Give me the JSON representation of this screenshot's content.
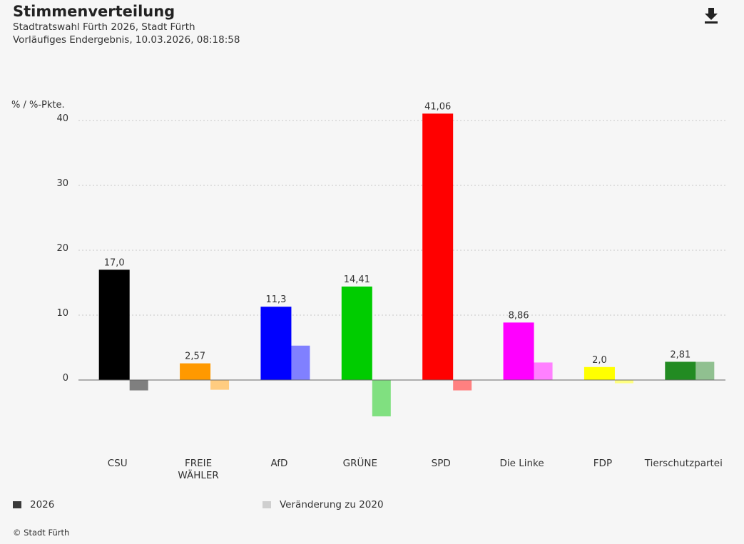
{
  "header": {
    "title": "Stimmenverteilung",
    "subtitle": "Stadtratswahl Fürth 2026, Stadt Fürth",
    "status": "Vorläufiges Endergebnis, 10.03.2026, 08:18:58",
    "download_icon": "download-icon"
  },
  "legend": {
    "current_label": "2026",
    "change_label": "Veränderung zu 2020",
    "current_color": "#3a3a3a",
    "change_color": "#cfcfcf"
  },
  "footer": {
    "credit": "© Stadt Fürth"
  },
  "chart_data": {
    "type": "bar",
    "ylabel": "% / %-Pkte.",
    "ylim": [
      -10,
      42
    ],
    "yticks": [
      0,
      10,
      20,
      30,
      40
    ],
    "grid": true,
    "categories": [
      {
        "name": "CSU",
        "lines": [
          "CSU"
        ]
      },
      {
        "name": "FREIE WÄHLER",
        "lines": [
          "FREIE",
          "WÄHLER"
        ]
      },
      {
        "name": "AfD",
        "lines": [
          "AfD"
        ]
      },
      {
        "name": "GRÜNE",
        "lines": [
          "GRÜNE"
        ]
      },
      {
        "name": "SPD",
        "lines": [
          "SPD"
        ]
      },
      {
        "name": "Die Linke",
        "lines": [
          "Die Linke"
        ]
      },
      {
        "name": "FDP",
        "lines": [
          "FDP"
        ]
      },
      {
        "name": "Tierschutzpartei",
        "lines": [
          "Tierschutzpartei"
        ]
      }
    ],
    "series": [
      {
        "name": "2026",
        "values": [
          17.0,
          2.57,
          11.3,
          14.41,
          41.06,
          8.86,
          2.0,
          2.81
        ],
        "labels": [
          "17,0",
          "2,57",
          "11,3",
          "14,41",
          "41,06",
          "8,86",
          "2,0",
          "2,81"
        ],
        "colors": [
          "#000000",
          "#ff9900",
          "#0000ff",
          "#00cc00",
          "#ff0000",
          "#ff00ff",
          "#ffff00",
          "#228b22"
        ]
      },
      {
        "name": "Veränderung zu 2020",
        "values": [
          -1.6,
          -1.5,
          5.3,
          -5.6,
          -1.6,
          2.7,
          -0.5,
          2.8
        ],
        "colors": [
          "#7f7f7f",
          "#ffcc80",
          "#8080ff",
          "#80e080",
          "#ff8080",
          "#ff80ff",
          "#ffff80",
          "#90c090"
        ]
      }
    ]
  }
}
